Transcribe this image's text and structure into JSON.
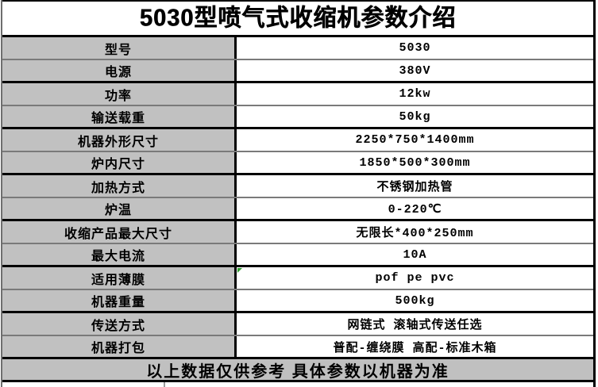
{
  "table": {
    "title": "5030型喷气式收缩机参数介绍",
    "rows": [
      {
        "label": "型号",
        "value": "5030"
      },
      {
        "label": "电源",
        "value": "380V"
      },
      {
        "label": "功率",
        "value": "12kw"
      },
      {
        "label": "输送载重",
        "value": "50kg"
      },
      {
        "label": "机器外形尺寸",
        "value": "2250*750*1400mm"
      },
      {
        "label": "炉内尺寸",
        "value": "1850*500*300mm"
      },
      {
        "label": "加热方式",
        "value": "不锈钢加热管"
      },
      {
        "label": "炉温",
        "value": "0-220℃"
      },
      {
        "label": "收缩产品最大尺寸",
        "value": "无限长*400*250mm"
      },
      {
        "label": "最大电流",
        "value": "10A"
      },
      {
        "label": "适用薄膜",
        "value": "pof pe pvc"
      },
      {
        "label": "机器重量",
        "value": "500kg"
      },
      {
        "label": "传送方式",
        "value": "网链式 滚轴式传送任选"
      },
      {
        "label": "机器打包",
        "value": "普配-缠绕膜  高配-标准木箱"
      }
    ],
    "footer_note": "以上数据仅供参考 具体参数以机器为准",
    "colors": {
      "label_bg": "#c1c1c1",
      "footer_bg": "#c0c0c0",
      "border_dark": "#000000",
      "border_medium": "#7a7a7a",
      "comment_marker_green": "#2f9e2f"
    }
  }
}
